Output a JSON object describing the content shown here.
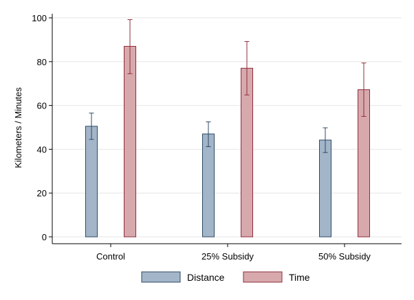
{
  "chart_data": {
    "type": "bar",
    "title": "",
    "xlabel": "",
    "ylabel": "Kilometers / Minutes",
    "ylim": [
      0,
      100
    ],
    "yticks": [
      0,
      20,
      40,
      60,
      80,
      100
    ],
    "grid": true,
    "legend_position": "bottom",
    "categories": [
      "Control",
      "25% Subsidy",
      "50% Subsidy"
    ],
    "series": [
      {
        "name": "Distance",
        "color": "#a3b5c8",
        "stroke": "#2c4964",
        "values": [
          50.5,
          47.0,
          44.2
        ],
        "err_low": [
          44.5,
          41.2,
          38.5
        ],
        "err_high": [
          56.5,
          52.5,
          49.8
        ]
      },
      {
        "name": "Time",
        "color": "#d7a9ac",
        "stroke": "#8e2b3a",
        "values": [
          87.0,
          77.0,
          67.2
        ],
        "err_low": [
          74.5,
          64.8,
          55.0
        ],
        "err_high": [
          99.2,
          89.2,
          79.4
        ]
      }
    ]
  }
}
